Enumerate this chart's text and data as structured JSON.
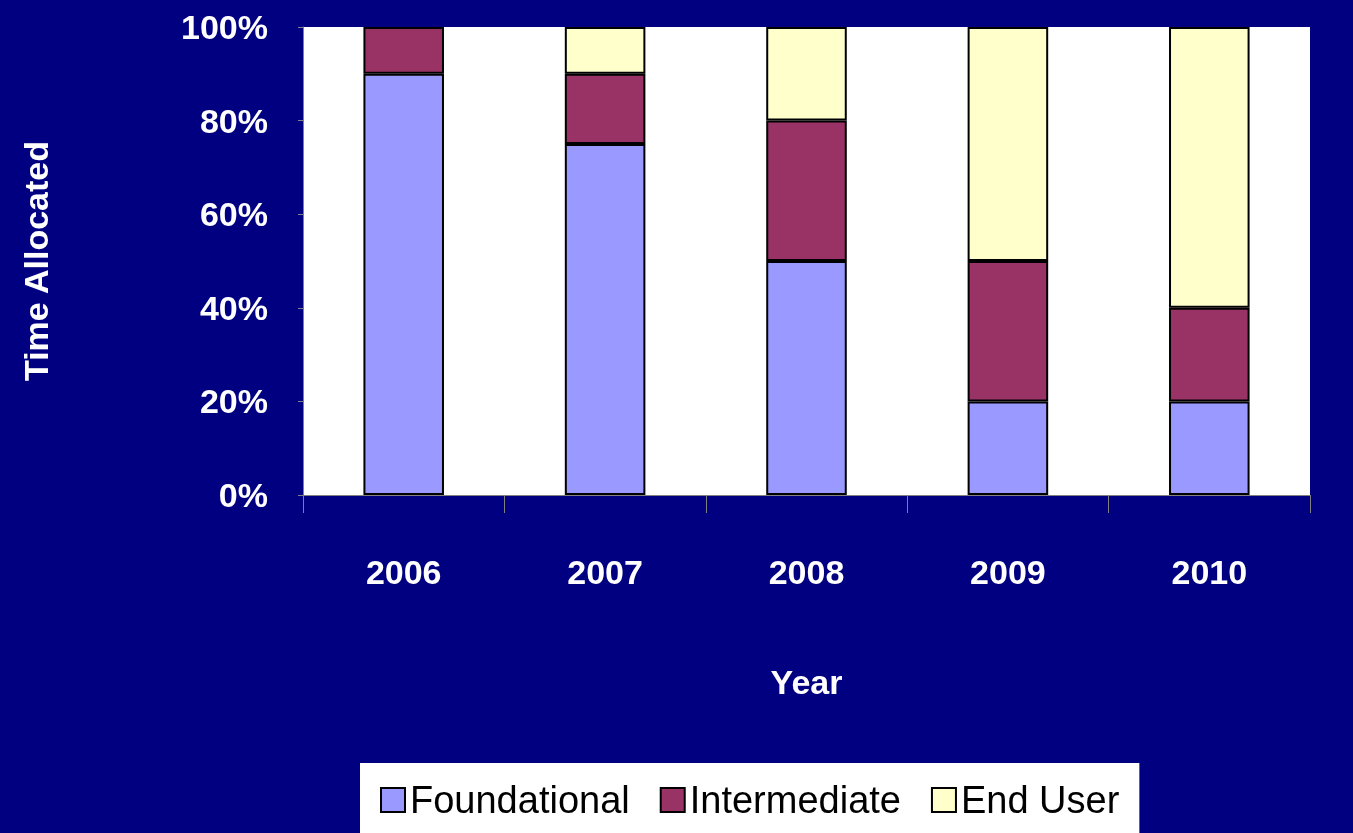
{
  "chart_data": {
    "type": "bar",
    "stacked": true,
    "xlabel": "Year",
    "ylabel": "Time Allocated",
    "categories": [
      "2006",
      "2007",
      "2008",
      "2009",
      "2010"
    ],
    "series": [
      {
        "name": "Foundational",
        "color": "#9999ff",
        "values": [
          90,
          75,
          50,
          20,
          20
        ]
      },
      {
        "name": "Intermediate",
        "color": "#993366",
        "values": [
          10,
          15,
          30,
          30,
          20
        ]
      },
      {
        "name": "End User",
        "color": "#ffffcc",
        "values": [
          0,
          10,
          20,
          50,
          60
        ]
      }
    ],
    "ylim": [
      0,
      100
    ],
    "yticks": [
      {
        "value": 0,
        "label": "0%"
      },
      {
        "value": 20,
        "label": "20%"
      },
      {
        "value": 40,
        "label": "40%"
      },
      {
        "value": 60,
        "label": "60%"
      },
      {
        "value": 80,
        "label": "80%"
      },
      {
        "value": 100,
        "label": "100%"
      }
    ],
    "grid": false,
    "legend": "bottom"
  }
}
